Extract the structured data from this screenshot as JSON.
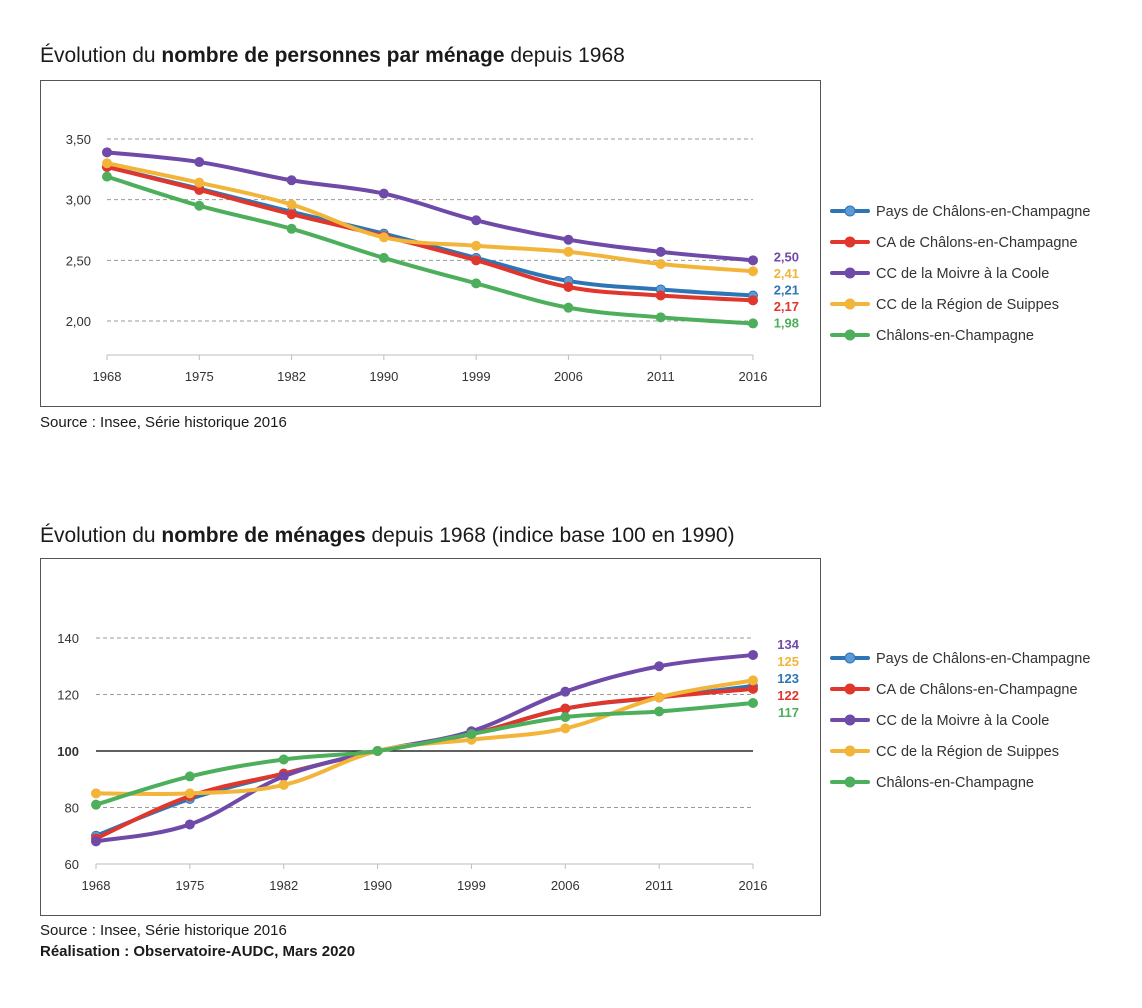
{
  "chart_data": [
    {
      "type": "line",
      "title_prefix": "Évolution du ",
      "title_bold": "nombre de personnes par ménage",
      "title_suffix": " depuis 1968",
      "source": "Source : Insee, Série historique 2016",
      "x": [
        "1968",
        "1975",
        "1982",
        "1990",
        "1999",
        "2006",
        "2011",
        "2016"
      ],
      "ylim": [
        1.8,
        3.7
      ],
      "yticks": [
        "2,00",
        "2,50",
        "3,00",
        "3,50"
      ],
      "ytick_values": [
        2.0,
        2.5,
        3.0,
        3.5
      ],
      "grid": true,
      "legend_position": "right",
      "series": [
        {
          "name": "Pays de Châlons-en-Champagne",
          "color": "#2e75b6",
          "marker": "#5b9bd5",
          "values": [
            3.27,
            3.09,
            2.9,
            2.72,
            2.52,
            2.33,
            2.26,
            2.21
          ],
          "end_label": "2,21"
        },
        {
          "name": "CA de Châlons-en-Champagne",
          "color": "#e0362c",
          "marker": "#e0362c",
          "values": [
            3.27,
            3.08,
            2.88,
            2.7,
            2.5,
            2.28,
            2.21,
            2.17
          ],
          "end_label": "2,17"
        },
        {
          "name": "CC de la Moivre à la Coole",
          "color": "#6f4aa8",
          "marker": "#6f4aa8",
          "values": [
            3.39,
            3.31,
            3.16,
            3.05,
            2.83,
            2.67,
            2.57,
            2.5
          ],
          "end_label": "2,50"
        },
        {
          "name": "CC de la Région de Suippes",
          "color": "#f2b53a",
          "marker": "#f2b53a",
          "values": [
            3.3,
            3.14,
            2.96,
            2.69,
            2.62,
            2.57,
            2.47,
            2.41
          ],
          "end_label": "2,41"
        },
        {
          "name": "Châlons-en-Champagne",
          "color": "#4daf5c",
          "marker": "#4daf5c",
          "values": [
            3.19,
            2.95,
            2.76,
            2.52,
            2.31,
            2.11,
            2.03,
            1.98
          ],
          "end_label": "1,98"
        }
      ]
    },
    {
      "type": "line",
      "title_prefix": "Évolution du ",
      "title_bold": "nombre de ménages",
      "title_suffix": " depuis 1968 (indice base 100 en 1990)",
      "source": "Source : Insee, Série historique 2016",
      "credit": "Réalisation : Observatoire-AUDC, Mars 2020",
      "x": [
        "1968",
        "1975",
        "1982",
        "1990",
        "1999",
        "2006",
        "2011",
        "2016"
      ],
      "ylim": [
        60,
        150
      ],
      "yticks": [
        "60",
        "80",
        "100",
        "120",
        "140"
      ],
      "ytick_values": [
        60,
        80,
        100,
        120,
        140
      ],
      "baseline": 100,
      "grid": true,
      "legend_position": "right",
      "series": [
        {
          "name": "Pays de Châlons-en-Champagne",
          "color": "#2e75b6",
          "marker": "#5b9bd5",
          "values": [
            70,
            83,
            92,
            100,
            106,
            115,
            119,
            123
          ],
          "end_label": "123"
        },
        {
          "name": "CA de Châlons-en-Champagne",
          "color": "#e0362c",
          "marker": "#e0362c",
          "values": [
            69,
            84,
            92,
            100,
            106,
            115,
            119,
            122
          ],
          "end_label": "122"
        },
        {
          "name": "CC de la Moivre à la Coole",
          "color": "#6f4aa8",
          "marker": "#6f4aa8",
          "values": [
            68,
            74,
            91,
            100,
            107,
            121,
            130,
            134
          ],
          "end_label": "134"
        },
        {
          "name": "CC de la Région de Suippes",
          "color": "#f2b53a",
          "marker": "#f2b53a",
          "values": [
            85,
            85,
            88,
            100,
            104,
            108,
            119,
            125
          ],
          "end_label": "125"
        },
        {
          "name": "Châlons-en-Champagne",
          "color": "#4daf5c",
          "marker": "#4daf5c",
          "values": [
            81,
            91,
            97,
            100,
            106,
            112,
            114,
            117
          ],
          "end_label": "117"
        }
      ]
    }
  ]
}
